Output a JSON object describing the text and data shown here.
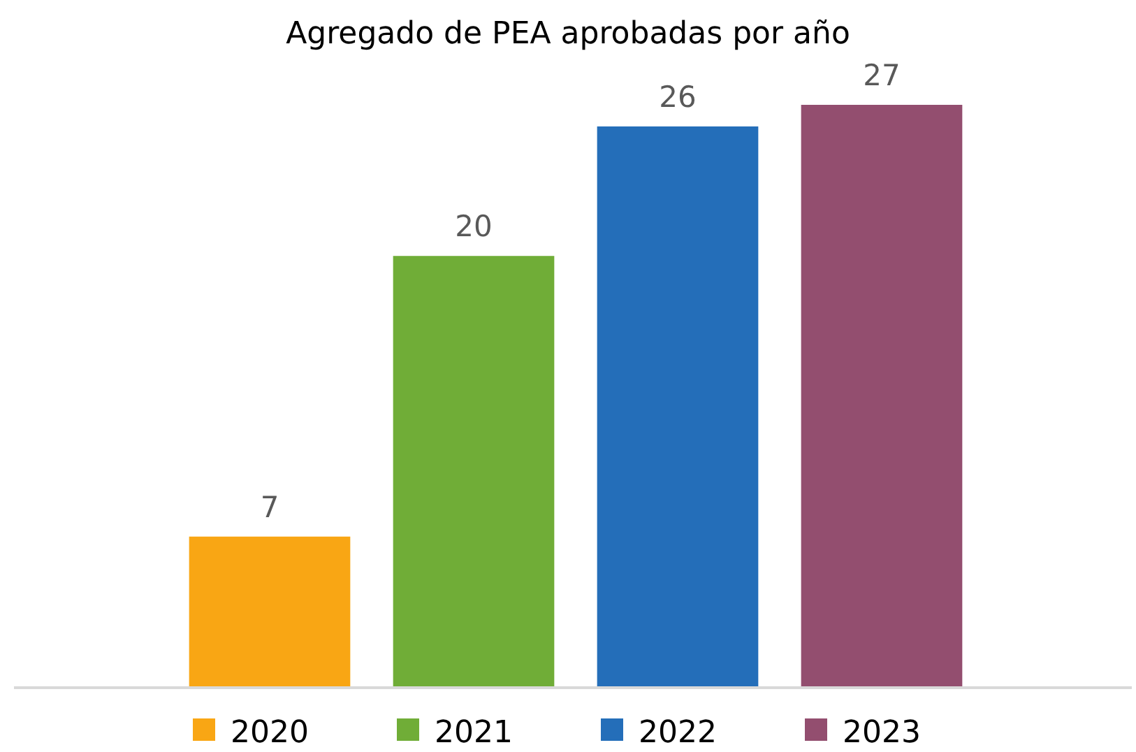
{
  "chart_data": {
    "type": "bar",
    "title": "Agregado de PEA aprobadas por año",
    "categories": [
      "2020",
      "2021",
      "2022",
      "2023"
    ],
    "values": [
      7,
      20,
      26,
      27
    ],
    "colors": [
      "#f9a614",
      "#70ad37",
      "#246eb9",
      "#934e6f"
    ],
    "data_labels": true
  }
}
